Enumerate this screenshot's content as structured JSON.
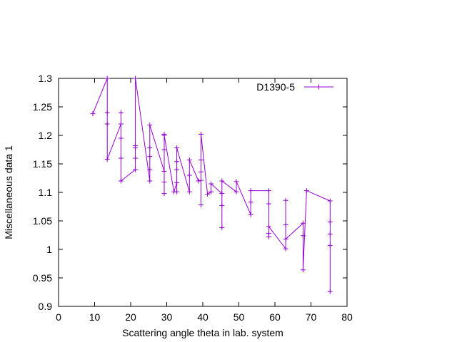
{
  "chart_data": {
    "type": "line",
    "title": "",
    "xlabel": "Scattering angle theta in lab. system",
    "ylabel": "Miscellaneous data 1",
    "xlim": [
      0,
      80
    ],
    "ylim": [
      0.9,
      1.3
    ],
    "xticks": [
      "0",
      "10",
      "20",
      "30",
      "40",
      "50",
      "60",
      "70",
      "80"
    ],
    "yticks": [
      "0.9",
      "0.95",
      "1",
      "1.05",
      "1.1",
      "1.15",
      "1.2",
      "1.25",
      "1.3"
    ],
    "grid": false,
    "legend_position": "top-right",
    "series": [
      {
        "name": "D1390-5",
        "color": "#9400d3",
        "marker": "plus",
        "x": [
          9.5,
          13.5,
          13.5,
          13.5,
          13.5,
          17.3,
          17.3,
          17.3,
          17.3,
          17.3,
          21.3,
          21.3,
          21.3,
          21.3,
          21.3,
          25.3,
          25.3,
          25.3,
          25.3,
          25.3,
          29.3,
          29.3,
          29.3,
          29.3,
          29.3,
          29.3,
          32.0,
          32.8,
          32.8,
          32.8,
          32.8,
          32.8,
          36.3,
          36.3,
          36.3,
          38.8,
          39.5,
          39.5,
          39.5,
          39.5,
          39.5,
          41.3,
          42.3,
          42.3,
          45.3,
          45.3,
          45.3,
          45.3,
          49.3,
          49.3,
          53.3,
          53.3,
          53.3,
          58.3,
          58.3,
          58.3,
          58.3,
          58.3,
          63.0,
          63.0,
          63.0,
          63.0,
          67.8,
          67.8,
          67.8,
          68.8,
          75.3,
          75.3,
          75.3,
          75.3,
          75.3
        ],
        "values": [
          1.238,
          1.3,
          1.24,
          1.22,
          1.158,
          1.22,
          1.24,
          1.195,
          1.16,
          1.12,
          1.14,
          1.16,
          1.178,
          1.182,
          1.3,
          1.12,
          1.14,
          1.163,
          1.178,
          1.218,
          1.137,
          1.118,
          1.098,
          1.175,
          1.202,
          1.2,
          1.101,
          1.117,
          1.101,
          1.14,
          1.154,
          1.178,
          1.101,
          1.13,
          1.157,
          1.12,
          1.121,
          1.078,
          1.136,
          1.157,
          1.202,
          1.097,
          1.101,
          1.115,
          1.098,
          1.038,
          1.077,
          1.12,
          1.101,
          1.119,
          1.061,
          1.083,
          1.103,
          1.103,
          1.08,
          1.028,
          1.022,
          1.04,
          1.001,
          1.043,
          1.086,
          1.018,
          1.046,
          1.024,
          0.964,
          1.103,
          1.085,
          1.048,
          1.027,
          1.007,
          0.926
        ]
      }
    ]
  }
}
